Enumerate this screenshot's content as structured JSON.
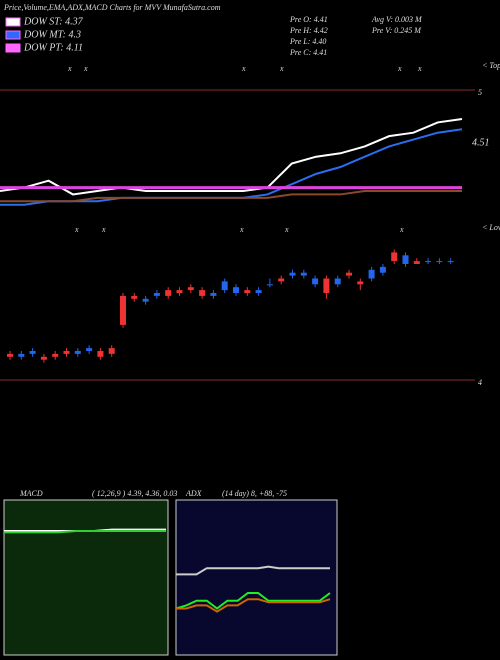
{
  "chart_data": {
    "type": "candlestick",
    "title": "Price,Volume,EMA,ADX,MACD Charts for MVV MunafaSutra.com",
    "legend": [
      {
        "label": "DOW ST: 4.37",
        "color": "#ffffff"
      },
      {
        "label": "DOW MT: 4.3",
        "color": "#3366ff"
      },
      {
        "label": "DOW PT: 4.11",
        "color": "#ff66ff"
      }
    ],
    "info": [
      "Pre  O: 4.41",
      "Avg V: 0.003 M",
      "Pre  H: 4.42",
      "Pre  V: 0.245 M",
      "Pre  L: 4.40",
      "Pre  C: 4.41"
    ],
    "price_label": "4.51",
    "axis_top": "5",
    "axis_bottom": "4",
    "tops_label": "< Tops",
    "lows_label": "< Lows",
    "top_marks": [
      "x",
      "x",
      "x",
      "x",
      "x",
      "x"
    ],
    "low_marks": [
      "x",
      "x",
      "x",
      "x",
      "x"
    ],
    "ylim": [
      4,
      5
    ],
    "open": [
      4.09,
      4.08,
      4.09,
      4.08,
      4.09,
      4.1,
      4.09,
      4.1,
      4.1,
      4.11,
      4.29,
      4.29,
      4.27,
      4.29,
      4.31,
      4.31,
      4.32,
      4.31,
      4.29,
      4.31,
      4.3,
      4.31,
      4.3,
      4.33,
      4.35,
      4.36,
      4.36,
      4.33,
      4.35,
      4.33,
      4.37,
      4.34,
      4.35,
      4.37,
      4.44,
      4.4,
      4.41,
      4.41,
      4.41,
      4.41
    ],
    "high": [
      4.1,
      4.1,
      4.11,
      4.09,
      4.1,
      4.11,
      4.11,
      4.12,
      4.11,
      4.12,
      4.3,
      4.3,
      4.29,
      4.31,
      4.32,
      4.32,
      4.33,
      4.32,
      4.31,
      4.35,
      4.33,
      4.32,
      4.32,
      4.35,
      4.36,
      4.38,
      4.38,
      4.36,
      4.36,
      4.36,
      4.38,
      4.35,
      4.39,
      4.4,
      4.45,
      4.44,
      4.42,
      4.42,
      4.42,
      4.42
    ],
    "low": [
      4.07,
      4.07,
      4.08,
      4.06,
      4.07,
      4.08,
      4.08,
      4.09,
      4.07,
      4.08,
      4.18,
      4.27,
      4.26,
      4.28,
      4.28,
      4.29,
      4.3,
      4.28,
      4.28,
      4.3,
      4.29,
      4.29,
      4.29,
      4.32,
      4.33,
      4.35,
      4.35,
      4.32,
      4.28,
      4.32,
      4.35,
      4.31,
      4.34,
      4.36,
      4.4,
      4.39,
      4.4,
      4.4,
      4.4,
      4.4
    ],
    "close": [
      4.08,
      4.09,
      4.1,
      4.07,
      4.08,
      4.09,
      4.1,
      4.11,
      4.08,
      4.09,
      4.19,
      4.28,
      4.28,
      4.3,
      4.29,
      4.3,
      4.31,
      4.29,
      4.3,
      4.34,
      4.32,
      4.3,
      4.31,
      4.33,
      4.34,
      4.37,
      4.37,
      4.35,
      4.3,
      4.35,
      4.36,
      4.33,
      4.38,
      4.39,
      4.41,
      4.43,
      4.4,
      4.41,
      4.41,
      4.41
    ],
    "up_color": "#2266ee",
    "down_color": "#ee3333",
    "ema_ylim": [
      4.3,
      4.65
    ],
    "ema_series": [
      {
        "color": "#ffffff",
        "values": [
          4.37,
          4.38,
          4.4,
          4.36,
          4.37,
          4.38,
          4.37,
          4.37,
          4.37,
          4.37,
          4.37,
          4.38,
          4.45,
          4.47,
          4.48,
          4.5,
          4.53,
          4.54,
          4.57,
          4.58
        ]
      },
      {
        "color": "#2a6ef0",
        "values": [
          4.33,
          4.33,
          4.34,
          4.34,
          4.34,
          4.35,
          4.35,
          4.35,
          4.35,
          4.35,
          4.35,
          4.36,
          4.39,
          4.42,
          4.44,
          4.47,
          4.5,
          4.52,
          4.54,
          4.55
        ]
      },
      {
        "color": "#dd44dd",
        "values": [
          4.38,
          4.38,
          4.38,
          4.38,
          4.38,
          4.38,
          4.38,
          4.38,
          4.38,
          4.38,
          4.38,
          4.38,
          4.38,
          4.38,
          4.38,
          4.38,
          4.38,
          4.38,
          4.38,
          4.38
        ]
      },
      {
        "color": "#8a4a2a",
        "values": [
          4.34,
          4.34,
          4.34,
          4.34,
          4.35,
          4.35,
          4.35,
          4.35,
          4.35,
          4.35,
          4.35,
          4.35,
          4.36,
          4.36,
          4.36,
          4.37,
          4.37,
          4.37,
          4.37,
          4.37
        ]
      }
    ],
    "macd": {
      "label": "MACD",
      "params": "( 12,26,9 ) 4.39, 4.36, 0.03",
      "ylim": [
        3.5,
        4.6
      ],
      "series": [
        {
          "color": "#ffffff",
          "values": [
            4.38,
            4.38,
            4.38,
            4.38,
            4.38,
            4.38,
            4.39,
            4.39,
            4.39,
            4.39
          ]
        },
        {
          "color": "#33cc33",
          "values": [
            4.37,
            4.37,
            4.37,
            4.37,
            4.38,
            4.38,
            4.38,
            4.38,
            4.38,
            4.38
          ]
        }
      ]
    },
    "adx": {
      "label": "ADX",
      "params": "(14 day) 8, +88, -75",
      "ylim": [
        0,
        100
      ],
      "series": [
        {
          "color": "#cccccc",
          "values": [
            52,
            52,
            52,
            56,
            56,
            56,
            56,
            56,
            56,
            57,
            56,
            56,
            56,
            56,
            56,
            56
          ]
        },
        {
          "color": "#22ee22",
          "values": [
            30,
            32,
            35,
            35,
            30,
            35,
            35,
            40,
            40,
            35,
            35,
            35,
            35,
            35,
            35,
            40
          ]
        },
        {
          "color": "#cc6600",
          "values": [
            30,
            30,
            32,
            32,
            28,
            32,
            32,
            36,
            36,
            34,
            34,
            34,
            34,
            34,
            34,
            36
          ]
        }
      ]
    }
  }
}
